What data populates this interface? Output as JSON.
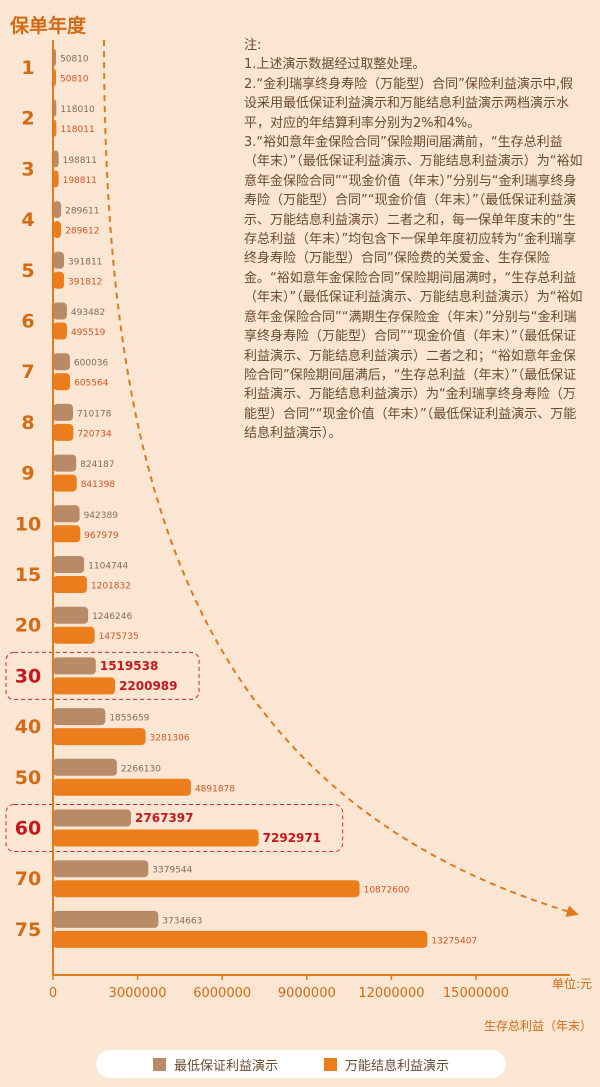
{
  "chart_data": {
    "type": "bar",
    "orientation": "horizontal",
    "ylabel": "保单年度",
    "xlabel": "生存总利益（年末）",
    "unit_label": "单位:元",
    "xlim": [
      0,
      15000000
    ],
    "x_ticks": [
      0,
      3000000,
      6000000,
      9000000,
      12000000,
      15000000
    ],
    "categories": [
      "1",
      "2",
      "3",
      "4",
      "5",
      "6",
      "7",
      "8",
      "9",
      "10",
      "15",
      "20",
      "30",
      "40",
      "50",
      "60",
      "70",
      "75"
    ],
    "highlighted_categories": [
      "30",
      "60"
    ],
    "series": [
      {
        "name": "最低保证利益演示",
        "color": "#b98a68",
        "values": [
          50810,
          118010,
          198811,
          289611,
          391811,
          493482,
          600036,
          710178,
          824187,
          942389,
          1104744,
          1246246,
          1519538,
          1855659,
          2266130,
          2767397,
          3379544,
          3734663
        ]
      },
      {
        "name": "万能结息利益演示",
        "color": "#ec7d1d",
        "values": [
          50810,
          118011,
          198811,
          289612,
          391812,
          495519,
          605564,
          720734,
          841398,
          967979,
          1201832,
          1475735,
          2200989,
          3281306,
          4891878,
          7292971,
          10872600,
          13275407
        ]
      }
    ],
    "grid": false,
    "legend_position": "bottom"
  },
  "colors": {
    "background": "#fbe6d3",
    "axis": "#e07a1f",
    "category_label": "#d46a14",
    "highlight_label": "#c8161d",
    "value_label": "#8b6a55",
    "orange_value_label": "#d9531f"
  },
  "notes": {
    "title": "注:",
    "lines": [
      "1.上述演示数据经过取整处理。",
      "2.“金利瑞享终身寿险（万能型）合同”保险利益演示中,假设采用最低保证利益演示和万能结息利益演示两档演示水平，对应的年结算利率分别为2%和4%。",
      "3.“裕如意年金保险合同”保险期间届满前，“生存总利益（年末）”（最低保证利益演示、万能结息利益演示）为“裕如意年金保险合同”“现金价值（年末）”分别与“金利瑞享终身寿险（万能型）合同”“现金价值（年末）”（最低保证利益演示、万能结息利益演示）二者之和，每一保单年度末的“生存总利益（年末）”均包含下一保单年度初应转为“金利瑞享终身寿险（万能型）合同”保险费的关爱金、生存保险金。“裕如意年金保险合同”保险期间届满时，“生存总利益（年末）”（最低保证利益演示、万能结息利益演示）为“裕如意年金保险合同”“满期生存保险金（年末）”分别与“金利瑞享终身寿险（万能型）合同”“现金价值（年末）”（最低保证利益演示、万能结息利益演示）二者之和；“裕如意年金保险合同”保险期间届满后，“生存总利益（年末）”（最低保证利益演示、万能结息利益演示）为“金利瑞享终身寿险（万能型）合同”“现金价值（年末）”（最低保证利益演示、万能结息利益演示）。"
    ]
  },
  "legend": {
    "items": [
      {
        "label": "最低保证利益演示",
        "color": "#b98a68"
      },
      {
        "label": "万能结息利益演示",
        "color": "#ec7d1d"
      }
    ]
  }
}
